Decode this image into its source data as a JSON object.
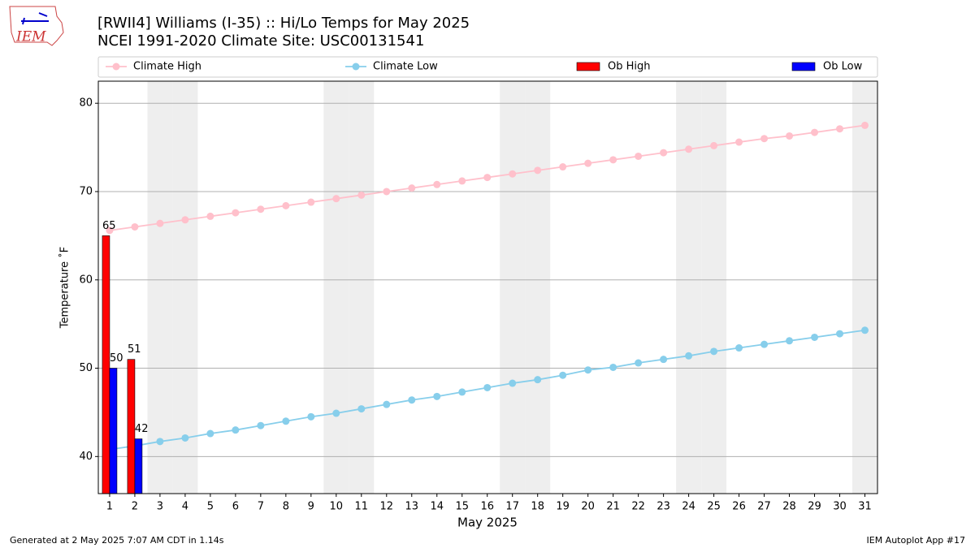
{
  "logo_text": "IEM",
  "footer_left": "Generated at 2 May 2025 7:07 AM CDT in 1.14s",
  "footer_right": "IEM Autoplot App #17",
  "chart_data": {
    "type": "bar_line",
    "title": "[RWII4] Williams (I-35) :: Hi/Lo Temps for May 2025",
    "subtitle": "NCEI 1991-2020 Climate Site: USC00131541",
    "x_label": "May 2025",
    "y_label": "Temperature ˚F",
    "x": [
      1,
      2,
      3,
      4,
      5,
      6,
      7,
      8,
      9,
      10,
      11,
      12,
      13,
      14,
      15,
      16,
      17,
      18,
      19,
      20,
      21,
      22,
      23,
      24,
      25,
      26,
      27,
      28,
      29,
      30,
      31
    ],
    "xlim": [
      0.55,
      31.5
    ],
    "ylim": [
      35.8,
      82.5
    ],
    "yticks": [
      40,
      50,
      60,
      70,
      80
    ],
    "grid": true,
    "shaded_days": [
      3,
      4,
      10,
      11,
      17,
      18,
      24,
      25,
      31
    ],
    "shade_color": "#eeeeee",
    "series": [
      {
        "name": "Climate High",
        "kind": "line",
        "color": "#ffc0cb",
        "values": [
          65.6,
          66.0,
          66.4,
          66.8,
          67.2,
          67.6,
          68.0,
          68.4,
          68.8,
          69.2,
          69.6,
          70.0,
          70.4,
          70.8,
          71.2,
          71.6,
          72.0,
          72.4,
          72.8,
          73.2,
          73.6,
          74.0,
          74.4,
          74.8,
          75.2,
          75.6,
          76.0,
          76.3,
          76.7,
          77.1,
          77.5
        ]
      },
      {
        "name": "Climate Low",
        "kind": "line",
        "color": "#87ceeb",
        "values": [
          40.8,
          41.2,
          41.7,
          42.1,
          42.6,
          43.0,
          43.5,
          44.0,
          44.5,
          44.9,
          45.4,
          45.9,
          46.4,
          46.8,
          47.3,
          47.8,
          48.3,
          48.7,
          49.2,
          49.8,
          50.1,
          50.6,
          51.0,
          51.4,
          51.9,
          52.3,
          52.7,
          53.1,
          53.5,
          53.9,
          54.3
        ]
      },
      {
        "name": "Ob High",
        "kind": "bar",
        "color": "#ff0000",
        "values": [
          65,
          51,
          null,
          null,
          null,
          null,
          null,
          null,
          null,
          null,
          null,
          null,
          null,
          null,
          null,
          null,
          null,
          null,
          null,
          null,
          null,
          null,
          null,
          null,
          null,
          null,
          null,
          null,
          null,
          null,
          null
        ]
      },
      {
        "name": "Ob Low",
        "kind": "bar",
        "color": "#0000ff",
        "values": [
          50,
          42,
          null,
          null,
          null,
          null,
          null,
          null,
          null,
          null,
          null,
          null,
          null,
          null,
          null,
          null,
          null,
          null,
          null,
          null,
          null,
          null,
          null,
          null,
          null,
          null,
          null,
          null,
          null,
          null,
          null
        ]
      }
    ]
  }
}
